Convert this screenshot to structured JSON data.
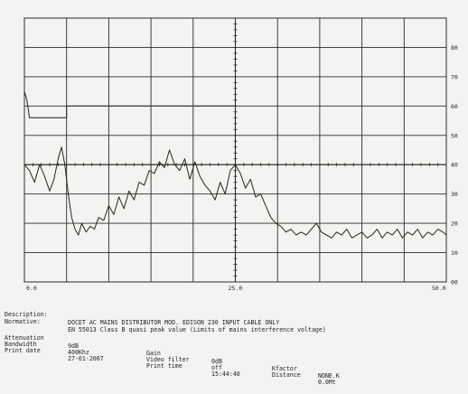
{
  "chart_data": {
    "type": "line",
    "x_tick_labels": [
      "0.0",
      "25.0",
      "50.0"
    ],
    "y_tick_labels": [
      "80",
      "70",
      "60",
      "50",
      "40",
      "30",
      "20",
      "10",
      "00"
    ],
    "xlim": [
      0,
      50
    ],
    "ylim": [
      0,
      90
    ],
    "grid": true,
    "limit_line": {
      "x": [
        0,
        0.3,
        0.6,
        5.0,
        5.0,
        25.0,
        25.0
      ],
      "y": [
        65,
        62,
        56,
        56,
        60,
        60,
        60
      ]
    },
    "series": [
      {
        "x": [
          0,
          0.6,
          1.2,
          1.8,
          2.4,
          3.0,
          3.5,
          4.0,
          4.4,
          4.8,
          5.2,
          5.6,
          6.0,
          6.4,
          6.8,
          7.3,
          7.8,
          8.3,
          8.8,
          9.4,
          10.0,
          10.6,
          11.2,
          11.8,
          12.4,
          13.0,
          13.6,
          14.2,
          14.8,
          15.4,
          16.0,
          16.6,
          17.2,
          17.8,
          18.4,
          19.0,
          19.6,
          20.2,
          20.8,
          21.4,
          22.0,
          22.6,
          23.2,
          23.8,
          24.4,
          25.0,
          25.6,
          26.2,
          26.8,
          27.4,
          28.0,
          28.6,
          29.2,
          29.8,
          30.4,
          31.0,
          31.6,
          32.2,
          32.8,
          33.4,
          34.0,
          34.6,
          35.2,
          35.8,
          36.4,
          37.0,
          37.6,
          38.2,
          38.8,
          39.4,
          40.0,
          40.6,
          41.2,
          41.8,
          42.4,
          43.0,
          43.6,
          44.2,
          44.8,
          45.4,
          46.0,
          46.6,
          47.2,
          47.8,
          48.4,
          49.0,
          49.6,
          50.0
        ],
        "y": [
          40,
          38,
          34,
          40,
          36,
          31,
          35,
          42,
          46,
          40,
          30,
          22,
          18,
          16,
          20,
          17,
          19,
          18,
          22,
          21,
          26,
          23,
          29,
          25,
          31,
          28,
          34,
          33,
          38,
          37,
          41,
          39,
          45,
          40,
          38,
          42,
          35,
          41,
          36,
          33,
          31,
          28,
          34,
          30,
          38,
          40,
          37,
          32,
          35,
          29,
          30,
          26,
          22,
          20,
          19,
          17,
          18,
          16,
          17,
          16,
          18,
          20,
          17,
          16,
          15,
          17,
          16,
          18,
          15,
          16,
          17,
          15,
          16,
          18,
          15,
          17,
          16,
          18,
          15,
          17,
          16,
          18,
          15,
          17,
          16,
          18,
          17,
          16
        ]
      }
    ]
  },
  "info": {
    "description_label": "Description:",
    "description_value": "DOCET AC MAINS DISTRIBUTOR MOD. EDISON 230 INPUT CABLE ONLY",
    "normative_label": "Normative:",
    "normative_value": "EN 55013 Class B quasi peak value (Limits of mains interference voltage)",
    "attenuation_label": "Attenuation",
    "attenuation_value": "9dB",
    "bandwidth_label": "Bandwidth",
    "bandwidth_value": "400Khz",
    "print_date_label": "Print date",
    "print_date_value": "27-01-2007",
    "gain_label": "Gain",
    "gain_value": "0dB",
    "video_filter_label": "Video filter",
    "video_filter_value": "off",
    "print_time_label": "Print time",
    "print_time_value": "15:44:40",
    "kfactor_label": "Kfactor",
    "kfactor_value": "NONE.K",
    "distance_label": "Distance",
    "distance_value": "0.0Mt"
  },
  "colors": {
    "grid": "#2b2b2b",
    "trace": "#1f2a1f",
    "background": "#f3f3f1"
  }
}
